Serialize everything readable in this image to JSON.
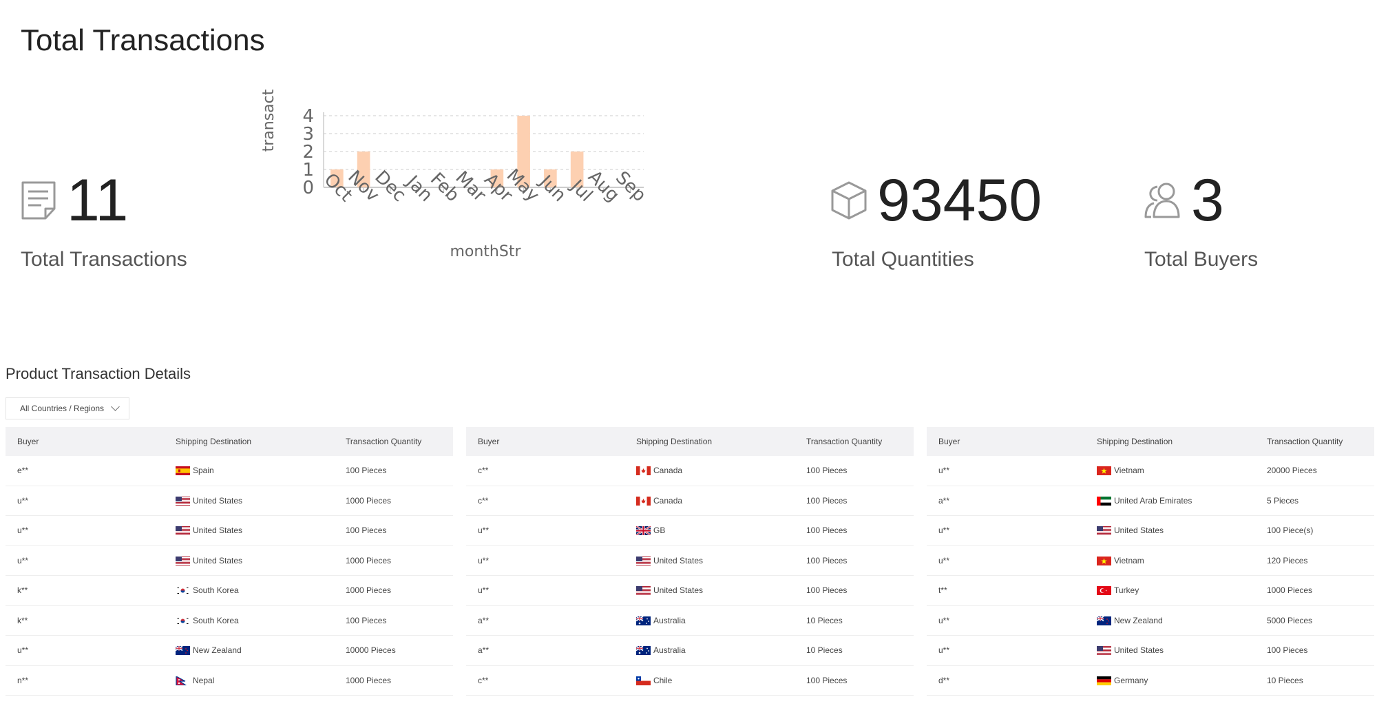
{
  "header": {
    "title": "Total Transactions"
  },
  "stats": {
    "transactions": {
      "value": "11",
      "label": "Total Transactions",
      "icon": "document-icon"
    },
    "quantities": {
      "value": "93450",
      "label": "Total Quantities",
      "icon": "box-icon"
    },
    "buyers": {
      "value": "3",
      "label": "Total Buyers",
      "icon": "users-icon"
    }
  },
  "chart_data": {
    "type": "bar",
    "categories": [
      "Oct",
      "Nov",
      "Dec",
      "Jan",
      "Feb",
      "Mar",
      "Apr",
      "May",
      "Jun",
      "Jul",
      "Aug",
      "Sep"
    ],
    "values": [
      1,
      2,
      0,
      0,
      0,
      0,
      1,
      4,
      1,
      2,
      0,
      0
    ],
    "xlabel": "monthStr",
    "ylabel": "transact",
    "ylim": [
      0,
      4
    ],
    "yticks": [
      "0",
      "1",
      "2",
      "3",
      "4"
    ],
    "grid": true,
    "bar_color": "#fdd0b1"
  },
  "details": {
    "title": "Product Transaction Details",
    "filter": {
      "selected": "All Countries / Regions"
    },
    "columns": [
      "Buyer",
      "Shipping Destination",
      "Transaction Quantity"
    ],
    "tables": [
      [
        {
          "buyer": "e**",
          "flag": "es",
          "dest": "Spain",
          "qty": "100 Pieces"
        },
        {
          "buyer": "u**",
          "flag": "us",
          "dest": "United States",
          "qty": "1000 Pieces"
        },
        {
          "buyer": "u**",
          "flag": "us",
          "dest": "United States",
          "qty": "100 Pieces"
        },
        {
          "buyer": "u**",
          "flag": "us",
          "dest": "United States",
          "qty": "1000 Pieces"
        },
        {
          "buyer": "k**",
          "flag": "kr",
          "dest": "South Korea",
          "qty": "1000 Pieces"
        },
        {
          "buyer": "k**",
          "flag": "kr",
          "dest": "South Korea",
          "qty": "100 Pieces"
        },
        {
          "buyer": "u**",
          "flag": "nz",
          "dest": "New Zealand",
          "qty": "10000 Pieces"
        },
        {
          "buyer": "n**",
          "flag": "np",
          "dest": "Nepal",
          "qty": "1000 Pieces"
        }
      ],
      [
        {
          "buyer": "c**",
          "flag": "ca",
          "dest": "Canada",
          "qty": "100 Pieces"
        },
        {
          "buyer": "c**",
          "flag": "ca",
          "dest": "Canada",
          "qty": "100 Pieces"
        },
        {
          "buyer": "u**",
          "flag": "gb",
          "dest": "GB",
          "qty": "100 Pieces"
        },
        {
          "buyer": "u**",
          "flag": "us",
          "dest": "United States",
          "qty": "100 Pieces"
        },
        {
          "buyer": "u**",
          "flag": "us",
          "dest": "United States",
          "qty": "100 Pieces"
        },
        {
          "buyer": "a**",
          "flag": "au",
          "dest": "Australia",
          "qty": "10 Pieces"
        },
        {
          "buyer": "a**",
          "flag": "au",
          "dest": "Australia",
          "qty": "10 Pieces"
        },
        {
          "buyer": "c**",
          "flag": "cl",
          "dest": "Chile",
          "qty": "100 Pieces"
        }
      ],
      [
        {
          "buyer": "u**",
          "flag": "vn",
          "dest": "Vietnam",
          "qty": "20000 Pieces"
        },
        {
          "buyer": "a**",
          "flag": "ae",
          "dest": "United Arab Emirates",
          "qty": "5 Pieces"
        },
        {
          "buyer": "u**",
          "flag": "us",
          "dest": "United States",
          "qty": "100 Piece(s)"
        },
        {
          "buyer": "u**",
          "flag": "vn",
          "dest": "Vietnam",
          "qty": "120 Pieces"
        },
        {
          "buyer": "t**",
          "flag": "tr",
          "dest": "Turkey",
          "qty": "1000 Pieces"
        },
        {
          "buyer": "u**",
          "flag": "nz",
          "dest": "New Zealand",
          "qty": "5000 Pieces"
        },
        {
          "buyer": "u**",
          "flag": "us",
          "dest": "United States",
          "qty": "100 Pieces"
        },
        {
          "buyer": "d**",
          "flag": "de",
          "dest": "Germany",
          "qty": "10 Pieces"
        }
      ]
    ]
  }
}
